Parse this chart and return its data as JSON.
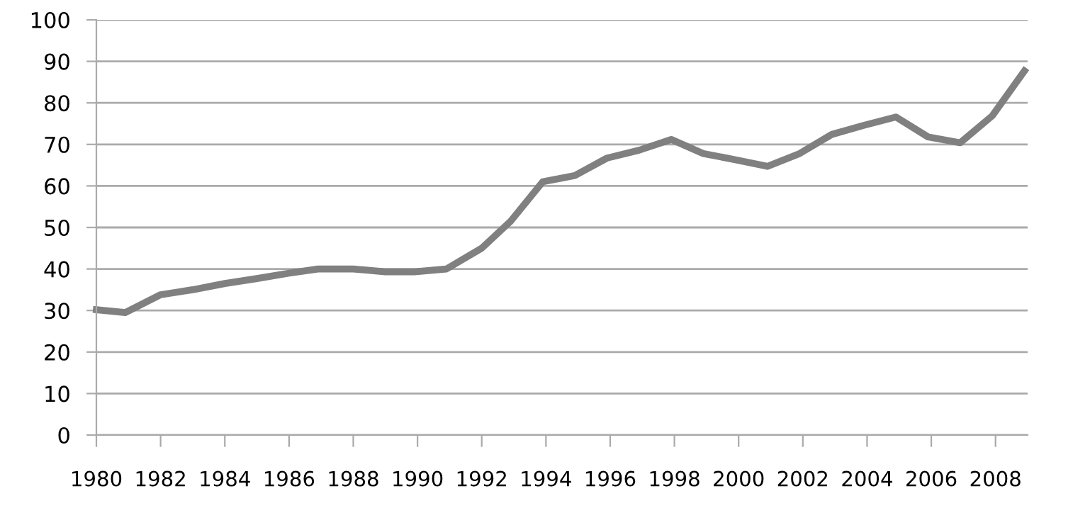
{
  "chart_data": {
    "type": "line",
    "x": [
      1980,
      1980.9,
      1982,
      1983,
      1984,
      1985,
      1986,
      1986.9,
      1988,
      1989,
      1989.9,
      1990.9,
      1992,
      1992.9,
      1993.9,
      1994.9,
      1995.9,
      1996.9,
      1997.9,
      1998.9,
      1999.9,
      2000.9,
      2001.9,
      2002.9,
      2003.9,
      2004.9,
      2005.9,
      2006.9,
      2007.9,
      2008.9
    ],
    "series": [
      {
        "color": "#808080",
        "values": [
          30.2,
          29.5,
          33.8,
          35,
          36.5,
          37.7,
          39,
          40,
          40,
          39.3,
          39.3,
          40,
          45,
          51.5,
          61,
          62.5,
          66.7,
          68.6,
          71.2,
          67.8,
          66.3,
          64.7,
          67.8,
          72.4,
          74.6,
          76.6,
          71.8,
          70.4,
          76.9,
          87.7
        ]
      }
    ],
    "xlim": [
      1980,
      2009
    ],
    "xticks": [
      1980,
      1982,
      1984,
      1986,
      1988,
      1990,
      1992,
      1994,
      1996,
      1998,
      2000,
      2002,
      2004,
      2006,
      2008
    ],
    "ylim": [
      0,
      100
    ],
    "yticks": [
      0,
      10,
      20,
      30,
      40,
      50,
      60,
      70,
      80,
      90,
      100
    ],
    "grid": "y",
    "marker": "none",
    "line_style": "solid",
    "legend": false
  }
}
